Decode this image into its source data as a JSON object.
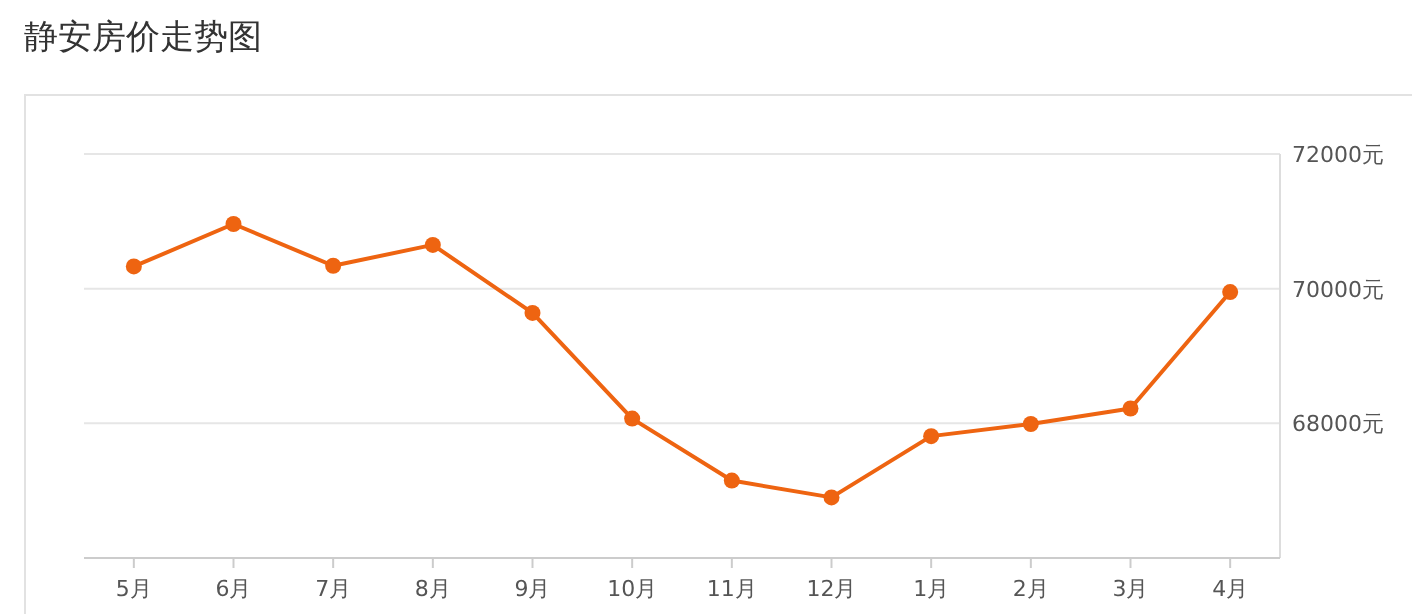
{
  "chart_data": {
    "type": "line",
    "title": "静安房价走势图",
    "categories": [
      "5月",
      "6月",
      "7月",
      "8月",
      "9月",
      "10月",
      "11月",
      "12月",
      "1月",
      "2月",
      "3月",
      "4月"
    ],
    "series": [
      {
        "color": "#ee6411",
        "values": [
          70330,
          70960,
          70340,
          70650,
          69640,
          68070,
          67150,
          66900,
          67810,
          67990,
          68220,
          69950
        ]
      }
    ],
    "ylim": [
      66000,
      72000
    ],
    "yticks": [
      {
        "value": 66000,
        "label": null
      },
      {
        "value": 68000,
        "label": "68000元"
      },
      {
        "value": 70000,
        "label": "70000元"
      },
      {
        "value": 72000,
        "label": "72000元"
      }
    ],
    "grid": "y",
    "marker": "circle"
  }
}
